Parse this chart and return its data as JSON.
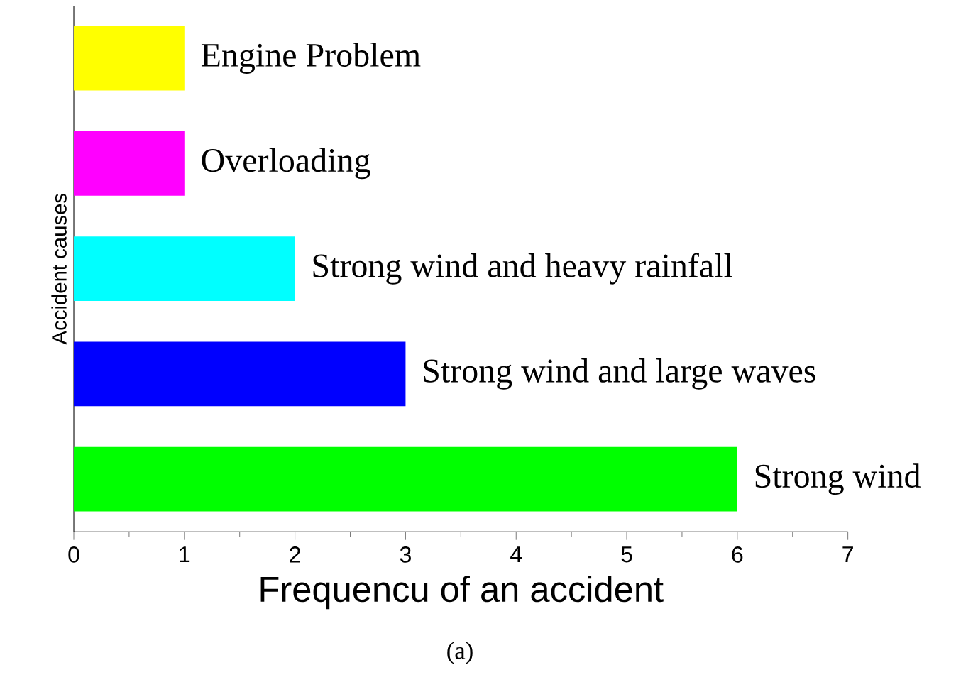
{
  "chart_data": {
    "type": "bar",
    "orientation": "horizontal",
    "xlabel": "Frequencu of an accident",
    "ylabel": "Accident causes",
    "categories": [
      "Engine Problem",
      "Overloading",
      "Strong wind and heavy rainfall",
      "Strong wind and large waves",
      "Strong wind"
    ],
    "values": [
      1,
      1,
      2,
      3,
      6
    ],
    "colors": [
      "#ffff00",
      "#ff00ff",
      "#00ffff",
      "#0000ff",
      "#00ff00"
    ],
    "xlim": [
      0,
      7
    ],
    "xticks": [
      0,
      1,
      2,
      3,
      4,
      5,
      6,
      7
    ],
    "tick_labels": "x",
    "grid": false,
    "annotations": [
      "(a)"
    ]
  }
}
